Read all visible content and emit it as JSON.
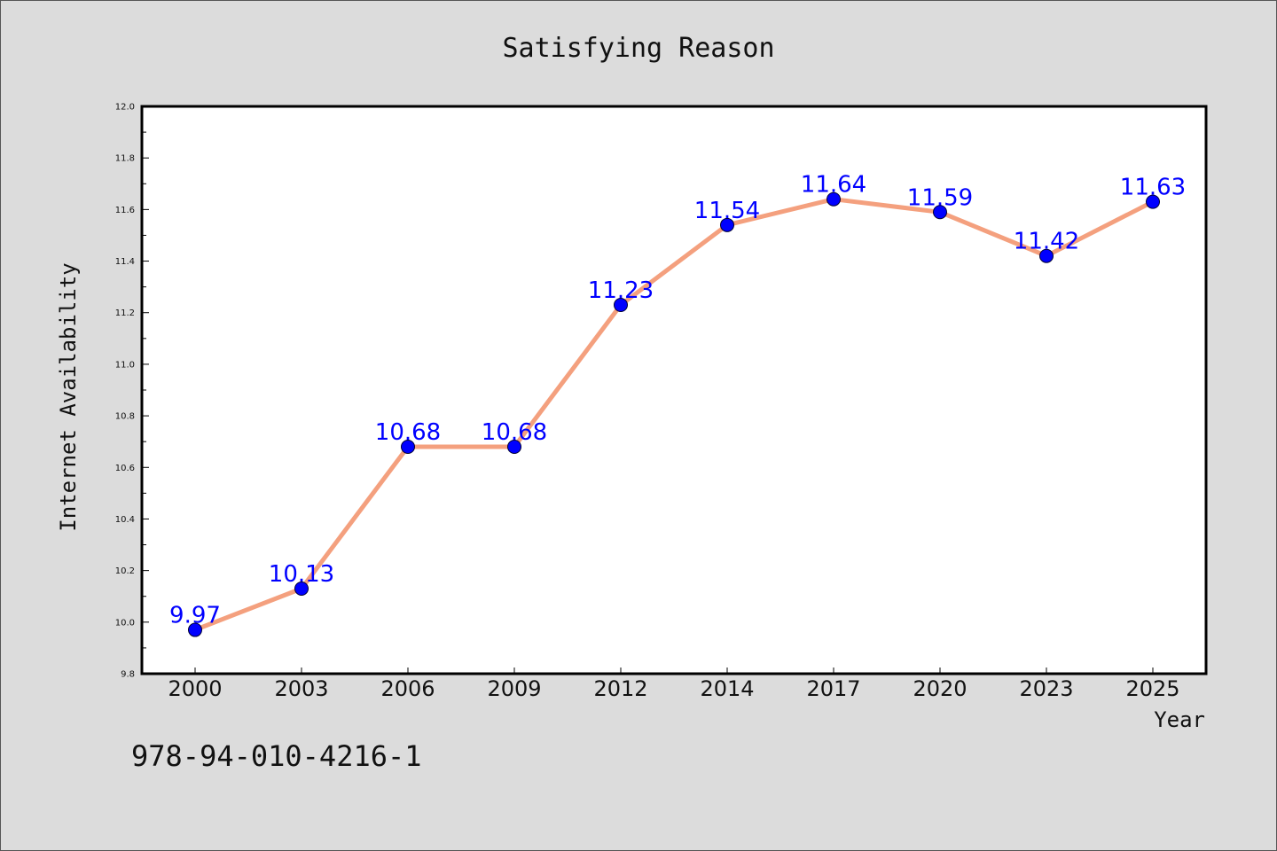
{
  "chart_data": {
    "type": "line",
    "title": "Satisfying Reason",
    "xlabel": "Year",
    "ylabel": "Internet Availability",
    "categories": [
      "2000",
      "2003",
      "2006",
      "2009",
      "2012",
      "2014",
      "2017",
      "2020",
      "2023",
      "2025"
    ],
    "series": [
      {
        "values": [
          9.97,
          10.13,
          10.68,
          10.68,
          11.23,
          11.54,
          11.64,
          11.59,
          11.42,
          11.63
        ]
      }
    ],
    "data_labels": [
      "9.97",
      "10.13",
      "10.68",
      "10.68",
      "11.23",
      "11.54",
      "11.64",
      "11.59",
      "11.42",
      "11.63"
    ],
    "ylim": [
      9.8,
      12.0
    ],
    "yticks": [
      "9.8",
      "10.0",
      "10.2",
      "10.4",
      "10.6",
      "10.8",
      "11.0",
      "11.2",
      "11.4",
      "11.6",
      "11.8",
      "12.0"
    ],
    "grid": false,
    "legend": "none",
    "colors": {
      "line": "#f4a07e",
      "marker": "#0000ff",
      "data_label": "#0000ff",
      "background": "#dcdcdc",
      "plot_background": "#ffffff"
    }
  },
  "footer": {
    "isbn": "978-94-010-4216-1"
  }
}
